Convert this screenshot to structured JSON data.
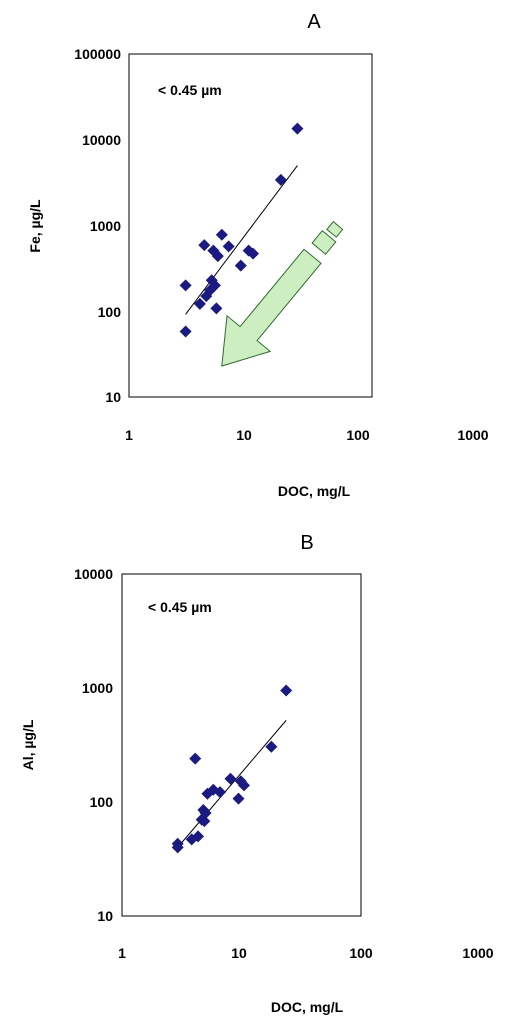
{
  "chart_data": [
    {
      "type": "scatter",
      "panel_label": "A",
      "annotation": "< 0.45 µm",
      "xlabel": "DOC, mg/L",
      "ylabel": "Fe, µg/L",
      "xscale": "log",
      "yscale": "log",
      "xlim": [
        1,
        1000
      ],
      "ylim": [
        10,
        100000
      ],
      "xtick_labels": [
        "1",
        "10",
        "100",
        "1000"
      ],
      "ytick_labels": [
        "10",
        "100",
        "1000",
        "10000",
        "100000"
      ],
      "grid": false,
      "marker": "diamond",
      "marker_color": "#1a1a80",
      "trendline": {
        "x": [
          5,
          120
        ],
        "y": [
          92,
          5000
        ],
        "color": "#000000"
      },
      "arrow": {
        "from": [
          380,
          1000
        ],
        "to": [
          14,
          23
        ],
        "fill": "#cdeec0",
        "stroke": "#2f6a2f"
      },
      "points": [
        {
          "x": 5,
          "y": 200
        },
        {
          "x": 5,
          "y": 58
        },
        {
          "x": 7.5,
          "y": 122
        },
        {
          "x": 8.5,
          "y": 590
        },
        {
          "x": 9,
          "y": 150
        },
        {
          "x": 10,
          "y": 175
        },
        {
          "x": 10.5,
          "y": 230
        },
        {
          "x": 11,
          "y": 510
        },
        {
          "x": 11.5,
          "y": 200
        },
        {
          "x": 12,
          "y": 108
        },
        {
          "x": 12.5,
          "y": 440
        },
        {
          "x": 14,
          "y": 780
        },
        {
          "x": 17,
          "y": 570
        },
        {
          "x": 24,
          "y": 340
        },
        {
          "x": 30,
          "y": 510
        },
        {
          "x": 34,
          "y": 470
        },
        {
          "x": 75,
          "y": 3400
        },
        {
          "x": 120,
          "y": 13500
        }
      ]
    },
    {
      "type": "scatter",
      "panel_label": "B",
      "annotation": "< 0.45 µm",
      "xlabel": "DOC, mg/L",
      "ylabel": "Al, µg/L",
      "xscale": "log",
      "yscale": "log",
      "xlim": [
        1,
        1000
      ],
      "ylim": [
        10,
        10000
      ],
      "xtick_labels": [
        "1",
        "10",
        "100",
        "1000"
      ],
      "ytick_labels": [
        "10",
        "100",
        "1000",
        "10000"
      ],
      "grid": false,
      "marker": "diamond",
      "marker_color": "#1a1a80",
      "trendline": {
        "x": [
          5,
          115
        ],
        "y": [
          40,
          520
        ],
        "color": "#000000"
      },
      "points": [
        {
          "x": 5,
          "y": 43
        },
        {
          "x": 5,
          "y": 40
        },
        {
          "x": 7.5,
          "y": 47
        },
        {
          "x": 8.3,
          "y": 240
        },
        {
          "x": 9,
          "y": 50
        },
        {
          "x": 10,
          "y": 70
        },
        {
          "x": 10.5,
          "y": 85
        },
        {
          "x": 10.8,
          "y": 68
        },
        {
          "x": 11.2,
          "y": 80
        },
        {
          "x": 11.8,
          "y": 118
        },
        {
          "x": 14,
          "y": 128
        },
        {
          "x": 17,
          "y": 122
        },
        {
          "x": 23,
          "y": 160
        },
        {
          "x": 29,
          "y": 107
        },
        {
          "x": 31,
          "y": 152
        },
        {
          "x": 34,
          "y": 140
        },
        {
          "x": 75,
          "y": 305
        },
        {
          "x": 115,
          "y": 950
        }
      ]
    }
  ]
}
